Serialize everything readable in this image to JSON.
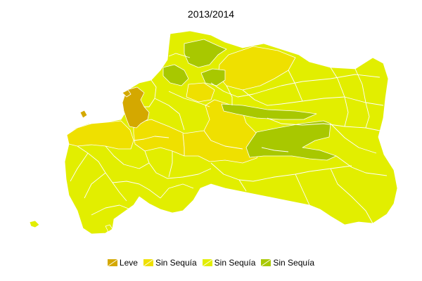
{
  "title": "2013/2014",
  "colors": {
    "leve": "#d4a800",
    "sin_sequia_1": "#efe000",
    "sin_sequia_2": "#e2ee00",
    "sin_sequia_3": "#a8c800",
    "border": "#ffffff"
  },
  "legend": [
    {
      "label": "Leve",
      "color": "#d4a800"
    },
    {
      "label": "Sin Sequía",
      "color": "#efe000"
    },
    {
      "label": "Sin Sequía",
      "color": "#e2ee00"
    },
    {
      "label": "Sin Sequía",
      "color": "#a8c800"
    }
  ]
}
